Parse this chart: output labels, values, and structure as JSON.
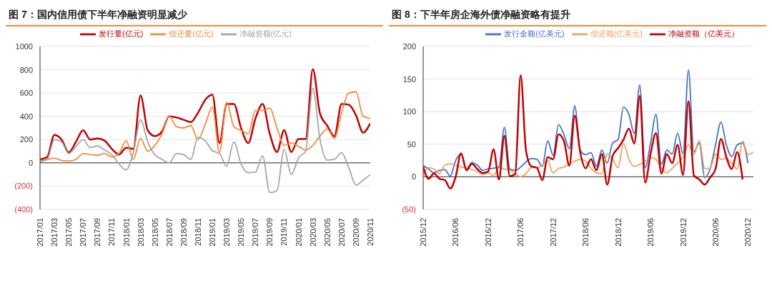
{
  "chart_data": [
    {
      "type": "line",
      "title": "图 7：国内信用债下半年净融资明显减少",
      "categories": [
        "2017/01",
        null,
        "2017/03",
        null,
        "2017/05",
        null,
        "2017/07",
        null,
        "2017/09",
        null,
        "2017/11",
        null,
        "2018/01",
        null,
        "2018/03",
        null,
        "2018/05",
        null,
        "2018/07",
        null,
        "2018/09",
        null,
        "2018/11",
        null,
        "2019/01",
        null,
        "2019/03",
        null,
        "2019/05",
        null,
        "2019/07",
        null,
        "2019/09",
        null,
        "2019/11",
        null,
        "2020/01",
        null,
        "2020/03",
        null,
        "2020/05",
        null,
        "2020/07",
        null,
        "2020/09",
        null,
        "2020/11"
      ],
      "series": [
        {
          "name": "发行量(亿元)",
          "color": "#c00000",
          "values": [
            30,
            50,
            240,
            200,
            90,
            180,
            280,
            200,
            210,
            190,
            120,
            70,
            130,
            120,
            580,
            280,
            230,
            270,
            400,
            390,
            370,
            350,
            430,
            540,
            585,
            170,
            505,
            505,
            300,
            170,
            380,
            505,
            250,
            93,
            280,
            93,
            205,
            205,
            805,
            423,
            320,
            228,
            505,
            500,
            410,
            260,
            340
          ]
        },
        {
          "name": "偿还量(亿元)",
          "color": "#f08c3c",
          "values": [
            20,
            30,
            40,
            20,
            15,
            30,
            80,
            70,
            65,
            80,
            50,
            80,
            190,
            30,
            210,
            100,
            150,
            250,
            400,
            310,
            300,
            320,
            200,
            330,
            480,
            90,
            520,
            310,
            280,
            250,
            450,
            450,
            470,
            300,
            150,
            170,
            140,
            110,
            150,
            230,
            290,
            210,
            430,
            600,
            610,
            400,
            380
          ]
        },
        {
          "name": "净融资额(亿元)",
          "color": "#a6a6a6",
          "values": [
            10,
            30,
            200,
            180,
            80,
            140,
            200,
            130,
            145,
            110,
            70,
            -10,
            -60,
            90,
            370,
            180,
            70,
            30,
            0,
            80,
            70,
            30,
            220,
            190,
            105,
            80,
            -30,
            180,
            -10,
            -85,
            -80,
            60,
            -255,
            -240,
            115,
            -100,
            42,
            100,
            642,
            200,
            23,
            30,
            88,
            -40,
            -190,
            -150,
            -100
          ]
        }
      ],
      "ylim": [
        -400,
        1000
      ],
      "yticks": [
        {
          "value": -400,
          "label": "(400)"
        },
        {
          "value": -200,
          "label": "(200)"
        },
        0,
        200,
        400,
        600,
        800,
        1000
      ],
      "grid": "y",
      "legend": "top",
      "marker": "none",
      "line_style": "solid"
    },
    {
      "type": "line",
      "title": "图 8：下半年房企海外债净融资略有提升",
      "categories": [
        "2015/12",
        null,
        null,
        null,
        null,
        null,
        "2016/06",
        null,
        null,
        null,
        null,
        null,
        "2016/12",
        null,
        null,
        null,
        null,
        null,
        "2017/06",
        null,
        null,
        null,
        null,
        null,
        "2017/12",
        null,
        null,
        null,
        null,
        null,
        "2018/06",
        null,
        null,
        null,
        null,
        null,
        "2018/12",
        null,
        null,
        null,
        null,
        null,
        "2019/06",
        null,
        null,
        null,
        null,
        null,
        "2019/12",
        null,
        null,
        null,
        null,
        null,
        "2020/06",
        null,
        null,
        null,
        null,
        null,
        "2020/12",
        null
      ],
      "series": [
        {
          "name": "发行金额(亿美元)",
          "color": "#4472c4",
          "values": [
            17,
            12,
            6,
            10,
            11,
            1,
            25,
            35,
            12,
            22,
            18,
            10,
            12,
            null,
            15,
            76,
            12,
            10,
            null,
            null,
            28,
            27,
            16,
            55,
            33,
            80,
            65,
            43,
            109,
            41,
            34,
            37,
            16,
            41,
            21,
            52,
            57,
            107,
            96,
            66,
            141,
            14,
            52,
            96,
            19,
            41,
            35,
            67,
            35,
            164,
            38,
            52,
            -1,
            12,
            49,
            84,
            49,
            31,
            49,
            52,
            21,
            null
          ]
        },
        {
          "name": "偿还额(亿美元)",
          "color": "#f0a060",
          "values": [
            3,
            14,
            12,
            5,
            18,
            20,
            18,
            15,
            14,
            11,
            8,
            4,
            6,
            2,
            14,
            12,
            10,
            5,
            0,
            5,
            14,
            14,
            18,
            25,
            6,
            13,
            15,
            20,
            24,
            27,
            24,
            13,
            6,
            5,
            35,
            27,
            14,
            51,
            27,
            16,
            19,
            24,
            30,
            27,
            13,
            6,
            13,
            21,
            30,
            49,
            34,
            56,
            13,
            13,
            35,
            27,
            28,
            21,
            12,
            55,
            34,
            38
          ]
        },
        {
          "name": "净融资额（亿美元）",
          "color": "#c00000",
          "values": [
            15,
            -3,
            5,
            -3,
            -5,
            -18,
            0,
            36,
            10,
            20,
            12,
            6,
            8,
            42,
            -4,
            63,
            1,
            4,
            156,
            40,
            16,
            14,
            -5,
            30,
            27,
            65,
            55,
            17,
            94,
            38,
            13,
            27,
            10,
            35,
            -12,
            32,
            44,
            57,
            74,
            51,
            124,
            -9,
            35,
            67,
            5,
            35,
            21,
            49,
            3,
            116,
            2,
            -4,
            -12,
            -1,
            12,
            58,
            30,
            12,
            38,
            -4,
            null,
            null
          ]
        }
      ],
      "ylim": [
        -50,
        200
      ],
      "yticks": [
        {
          "value": -50,
          "label": "(50)"
        },
        0,
        50,
        100,
        150,
        200
      ],
      "grid": "y",
      "legend": "top right",
      "marker": "none",
      "line_style": "solid"
    }
  ]
}
